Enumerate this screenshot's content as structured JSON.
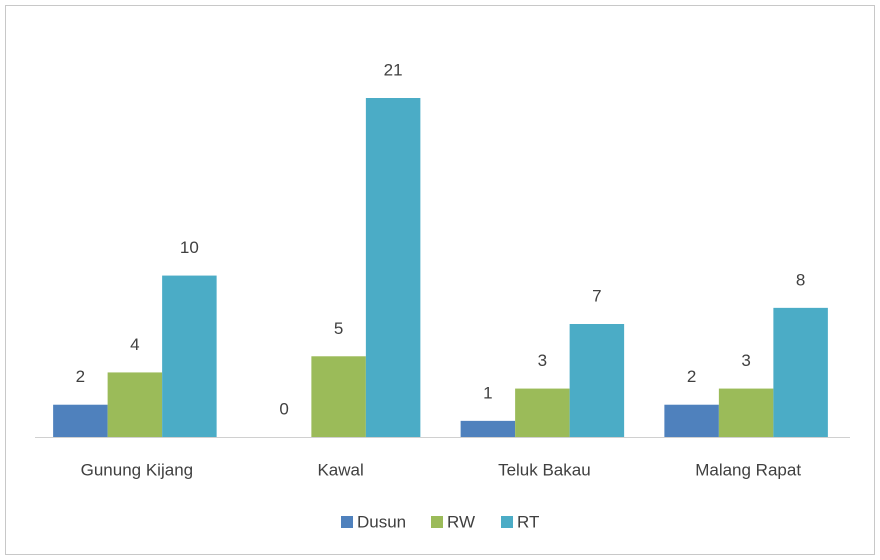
{
  "chart_data": {
    "type": "bar",
    "categories": [
      "Gunung Kijang",
      "Kawal",
      "Teluk Bakau",
      "Malang Rapat"
    ],
    "series": [
      {
        "name": "Dusun",
        "color": "#4f81bd",
        "values": [
          2,
          0,
          1,
          2
        ]
      },
      {
        "name": "RW",
        "color": "#9bbb59",
        "values": [
          4,
          5,
          3,
          3
        ]
      },
      {
        "name": "RT",
        "color": "#4bacc6",
        "values": [
          10,
          21,
          7,
          8
        ]
      }
    ],
    "legend": "bottom"
  }
}
